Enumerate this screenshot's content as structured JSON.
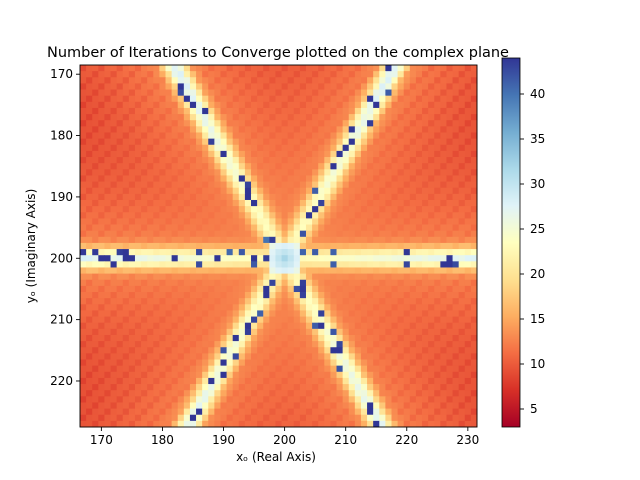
{
  "chart_data": {
    "type": "heatmap",
    "title": "Number of Iterations to Converge plotted on the complex plane",
    "xlabel": "xₒ (Real Axis)",
    "ylabel": "yₒ (Imaginary Axis)",
    "xlim": [
      166.5,
      231.5
    ],
    "ylim": [
      227.5,
      168.5
    ],
    "x_ticks": [
      170,
      180,
      190,
      200,
      210,
      220,
      230
    ],
    "y_ticks": [
      170,
      180,
      190,
      200,
      210,
      220
    ],
    "colormap": "RdYlBu",
    "colorbar": {
      "min": 3,
      "max": 44,
      "ticks": [
        5,
        10,
        15,
        20,
        25,
        30,
        35,
        40
      ]
    },
    "center": [
      200,
      200
    ],
    "pattern": "six-fold star: iteration counts highest along the horizontal line y=200 and along the lines at ±60° through the center, lowest in the corners",
    "value_range_background": [
      8,
      14
    ],
    "value_range_ridges": [
      18,
      40
    ]
  }
}
